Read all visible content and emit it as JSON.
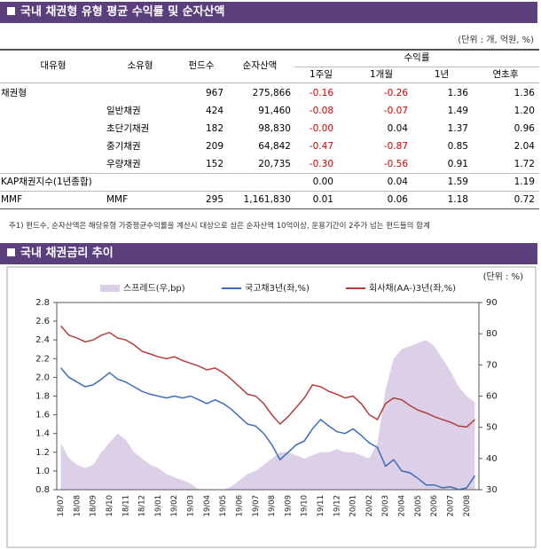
{
  "header1": "국내 채권형 유형 평균 수익률 및 순자산액",
  "unit": "(단위 : 개, 억원, %)",
  "table": {
    "columns": [
      "대유형",
      "소유형",
      "펀드수",
      "순자산액"
    ],
    "return_group": "수익률",
    "return_columns": [
      "1주일",
      "1개월",
      "1년",
      "연초후"
    ],
    "rows": [
      {
        "group": "채권형",
        "funds": "967",
        "assets": "275,866",
        "returns": [
          "-0.16",
          "-0.26",
          "1.36",
          "1.36"
        ]
      },
      {
        "sub": "일반채권",
        "funds": "424",
        "assets": "91,460",
        "returns": [
          "-0.08",
          "-0.07",
          "1.49",
          "1.20"
        ]
      },
      {
        "sub": "초단기채권",
        "funds": "182",
        "assets": "98,830",
        "returns": [
          "-0.00",
          "0.04",
          "1.37",
          "0.96"
        ]
      },
      {
        "sub": "중기채권",
        "funds": "209",
        "assets": "64,842",
        "returns": [
          "-0.47",
          "-0.87",
          "0.85",
          "2.04"
        ]
      },
      {
        "sub": "우량채권",
        "funds": "152",
        "assets": "20,735",
        "returns": [
          "-0.30",
          "-0.56",
          "0.91",
          "1.72"
        ]
      },
      {
        "group": "KAP채권지수(1년종합)",
        "returns": [
          "0.00",
          "0.04",
          "1.59",
          "1.19"
        ]
      },
      {
        "group": "MMF",
        "sub": "MMF",
        "funds": "295",
        "assets": "1,161,830",
        "returns": [
          "0.01",
          "0.06",
          "1.18",
          "0.72"
        ]
      }
    ]
  },
  "footnote": "주1) 펀드수, 순자산액은 해당유형 가중평균수익률을 계산시 대상으로 삼은 순자산액 10억이상, 운용기간이 2주가 넘는 펀드들의 합계",
  "header2": "국내 채권금리 추이",
  "chart_data": {
    "type": "line",
    "unit": "(단위 : %)",
    "categories": [
      "18/07",
      null,
      "18/08",
      null,
      "18/09",
      null,
      "18/10",
      null,
      "18/11",
      null,
      "18/12",
      null,
      "19/01",
      null,
      "19/02",
      null,
      "19/03",
      null,
      "19/04",
      null,
      "19/05",
      null,
      "19/06",
      null,
      "19/07",
      null,
      "19/08",
      null,
      "19/09",
      null,
      "19/10",
      null,
      "19/11",
      null,
      "19/12",
      null,
      "20/01",
      null,
      "20/02",
      null,
      "20/03",
      null,
      "20/04",
      null,
      "20/05",
      null,
      "20/06",
      null,
      "20/07",
      null,
      "20/08",
      null
    ],
    "series": [
      {
        "name": "스프레드(우,bp)",
        "color": "#dccfe8",
        "axis": "y2",
        "area": true,
        "values": [
          45,
          40,
          38,
          37,
          38,
          42,
          45,
          48,
          46,
          42,
          40,
          38,
          37,
          35,
          34,
          33,
          32,
          30,
          30,
          30,
          30,
          31,
          33,
          35,
          36,
          38,
          40,
          42,
          42,
          41,
          40,
          41,
          42,
          42,
          43,
          42,
          42,
          41,
          40,
          45,
          62,
          72,
          75,
          76,
          77,
          78,
          76,
          72,
          68,
          63,
          60,
          58
        ]
      },
      {
        "name": "국고채3년(좌,%)",
        "color": "#3d6db5",
        "values": [
          2.1,
          2.0,
          1.95,
          1.9,
          1.92,
          1.98,
          2.05,
          1.98,
          1.95,
          1.9,
          1.85,
          1.82,
          1.8,
          1.78,
          1.8,
          1.78,
          1.8,
          1.76,
          1.72,
          1.76,
          1.72,
          1.66,
          1.58,
          1.5,
          1.48,
          1.4,
          1.28,
          1.12,
          1.2,
          1.28,
          1.32,
          1.45,
          1.55,
          1.48,
          1.42,
          1.4,
          1.45,
          1.38,
          1.3,
          1.25,
          1.05,
          1.12,
          1.0,
          0.98,
          0.92,
          0.85,
          0.85,
          0.82,
          0.83,
          0.8,
          0.82,
          0.95
        ]
      },
      {
        "name": "회사채(AA-)3년(좌,%)",
        "color": "#b33c3c",
        "values": [
          2.55,
          2.45,
          2.42,
          2.38,
          2.4,
          2.45,
          2.48,
          2.42,
          2.4,
          2.35,
          2.28,
          2.25,
          2.22,
          2.2,
          2.22,
          2.18,
          2.15,
          2.12,
          2.08,
          2.1,
          2.05,
          1.98,
          1.9,
          1.82,
          1.8,
          1.72,
          1.6,
          1.5,
          1.58,
          1.68,
          1.78,
          1.92,
          1.9,
          1.85,
          1.82,
          1.78,
          1.8,
          1.72,
          1.6,
          1.55,
          1.72,
          1.78,
          1.76,
          1.7,
          1.65,
          1.62,
          1.58,
          1.55,
          1.52,
          1.48,
          1.47,
          1.55
        ]
      }
    ],
    "ylim": [
      0.8,
      2.8
    ],
    "yticks": [
      0.8,
      1.2,
      1.4,
      1.6,
      1.8,
      {
        "value": 2,
        "label": "2.0"
      },
      2.2,
      2.4,
      2.6,
      2.8,
      {
        "value": 1,
        "label": "1.0"
      }
    ],
    "y2lim": [
      30,
      90
    ],
    "y2ticks": [
      30,
      40,
      50,
      60,
      70,
      80,
      90
    ]
  }
}
